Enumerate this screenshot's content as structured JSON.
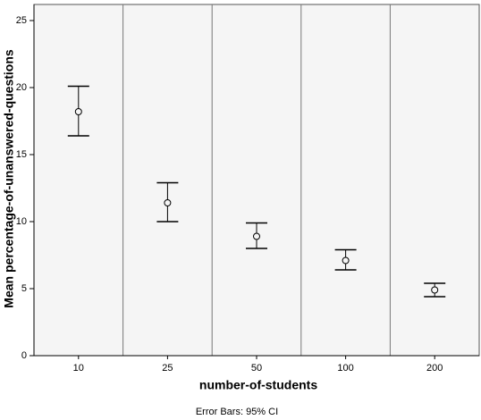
{
  "chart_data": {
    "type": "errorbar",
    "xlabel": "number-of-students",
    "ylabel": "Mean percentage-of-unanswered-questions",
    "footnote": "Error Bars: 95% CI",
    "categories": [
      "10",
      "25",
      "50",
      "100",
      "200"
    ],
    "values": [
      18.2,
      11.4,
      8.9,
      7.1,
      4.9
    ],
    "ci_low": [
      16.4,
      10.0,
      8.0,
      6.4,
      4.4
    ],
    "ci_high": [
      20.1,
      12.9,
      9.9,
      7.9,
      5.4
    ],
    "ylim": [
      0,
      26.2
    ],
    "yticks": [
      0,
      5,
      10,
      15,
      20,
      25
    ],
    "color": "#000000",
    "background": "#f5f5f5"
  }
}
